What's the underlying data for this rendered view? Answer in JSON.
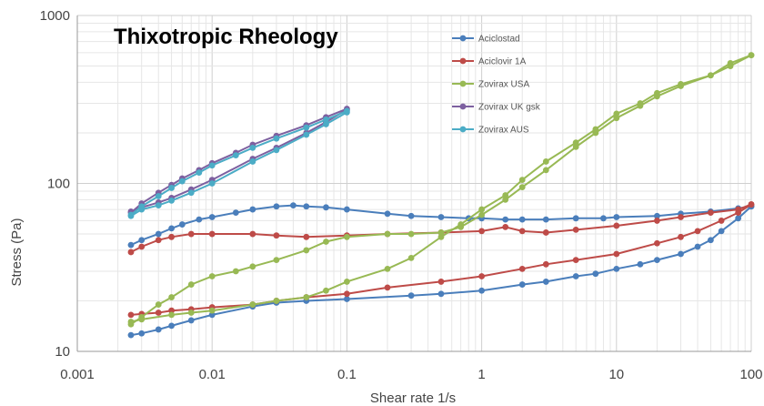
{
  "chart_data": {
    "type": "line",
    "title": "Thixotropic Rheology",
    "xlabel": "Shear rate 1/s",
    "ylabel": "Stress (Pa)",
    "xscale": "log",
    "yscale": "log",
    "xlim": [
      0.001,
      100
    ],
    "ylim": [
      10,
      1000
    ],
    "x_ticks": [
      {
        "value": 0.001,
        "label": "0.001"
      },
      {
        "value": 0.01,
        "label": "0.01"
      },
      {
        "value": 0.1,
        "label": "0.1"
      },
      {
        "value": 1,
        "label": "1"
      },
      {
        "value": 10,
        "label": "10"
      },
      {
        "value": 100,
        "label": "100"
      }
    ],
    "y_ticks": [
      {
        "value": 10,
        "label": "10"
      },
      {
        "value": 100,
        "label": "100"
      },
      {
        "value": 1000,
        "label": "1000"
      }
    ],
    "grid": true,
    "legend_position": "top-right",
    "series": [
      {
        "name": "Aciclostad",
        "color": "#4a7ebb",
        "segments": [
          {
            "x": [
              0.0025,
              0.003,
              0.004,
              0.005,
              0.006,
              0.008,
              0.01,
              0.015,
              0.02,
              0.03,
              0.04,
              0.05,
              0.07,
              0.1,
              0.2,
              0.3,
              0.5,
              0.8,
              1,
              1.5,
              2,
              3,
              5,
              8,
              10,
              20,
              30,
              50,
              80,
              100
            ],
            "y": [
              43,
              46,
              50,
              54,
              57,
              61,
              63,
              67,
              70,
              73,
              74,
              73,
              72,
              70,
              66,
              64,
              63,
              62,
              62,
              61,
              61,
              61,
              62,
              62,
              63,
              64,
              66,
              68,
              71,
              73
            ]
          },
          {
            "x": [
              100,
              80,
              60,
              50,
              40,
              30,
              20,
              15,
              10,
              7,
              5,
              3,
              2,
              1,
              0.5,
              0.3,
              0.1,
              0.05,
              0.03,
              0.02,
              0.01,
              0.007,
              0.005,
              0.004,
              0.003,
              0.0025
            ],
            "y": [
              73,
              62,
              52,
              46,
              42,
              38,
              35,
              33,
              31,
              29,
              28,
              26,
              25,
              23,
              22,
              21.5,
              20.5,
              20,
              19.5,
              18.5,
              16.5,
              15.3,
              14.2,
              13.5,
              12.8,
              12.5
            ]
          }
        ]
      },
      {
        "name": "Aciclovir 1A",
        "color": "#be4b48",
        "segments": [
          {
            "x": [
              0.0025,
              0.003,
              0.004,
              0.005,
              0.007,
              0.01,
              0.02,
              0.03,
              0.05,
              0.1,
              0.2,
              0.5,
              1,
              1.5,
              2,
              3,
              5,
              10,
              20,
              30,
              50,
              80,
              100
            ],
            "y": [
              39,
              42,
              46,
              48,
              50,
              50,
              50,
              49,
              48,
              49,
              50,
              51,
              52,
              55,
              52,
              51,
              53,
              56,
              60,
              63,
              67,
              70,
              75
            ]
          },
          {
            "x": [
              100,
              80,
              60,
              40,
              30,
              20,
              10,
              5,
              3,
              2,
              1,
              0.5,
              0.2,
              0.1,
              0.05,
              0.03,
              0.02,
              0.01,
              0.007,
              0.005,
              0.004,
              0.003,
              0.0025
            ],
            "y": [
              75,
              67,
              60,
              52,
              48,
              44,
              38,
              35,
              33,
              31,
              28,
              26,
              24,
              22,
              21,
              20,
              19,
              18.3,
              17.8,
              17.5,
              17,
              16.7,
              16.5
            ]
          }
        ]
      },
      {
        "name": "Zovirax USA",
        "color": "#98b954",
        "segments": [
          {
            "x": [
              0.0025,
              0.003,
              0.004,
              0.005,
              0.007,
              0.01,
              0.015,
              0.02,
              0.03,
              0.05,
              0.07,
              0.1,
              0.2,
              0.3,
              0.5,
              0.7,
              1,
              1.5,
              2,
              3,
              5,
              7,
              10,
              15,
              20,
              30,
              50,
              70,
              100
            ],
            "y": [
              14.5,
              16,
              19,
              21,
              25,
              28,
              30,
              32,
              35,
              40,
              45,
              48,
              50,
              50,
              51,
              55,
              65,
              80,
              95,
              120,
              165,
              200,
              245,
              290,
              330,
              380,
              440,
              520,
              580
            ]
          },
          {
            "x": [
              100,
              70,
              50,
              30,
              20,
              15,
              10,
              7,
              5,
              3,
              2,
              1.5,
              1,
              0.7,
              0.5,
              0.3,
              0.2,
              0.1,
              0.07,
              0.05,
              0.03,
              0.02,
              0.01,
              0.007,
              0.005,
              0.003,
              0.0025
            ],
            "y": [
              580,
              500,
              440,
              390,
              345,
              300,
              260,
              210,
              175,
              135,
              105,
              85,
              70,
              57,
              48,
              36,
              31,
              26,
              23,
              21,
              20,
              19,
              17.5,
              17,
              16.5,
              15.5,
              15
            ]
          }
        ]
      },
      {
        "name": "Zovirax UK gsk",
        "color": "#7d60a0",
        "segments": [
          {
            "x": [
              0.0025,
              0.003,
              0.004,
              0.005,
              0.006,
              0.008,
              0.01,
              0.015,
              0.02,
              0.03,
              0.05,
              0.07,
              0.1
            ],
            "y": [
              67,
              76,
              88,
              98,
              107,
              120,
              132,
              152,
              170,
              192,
              222,
              248,
              278
            ]
          },
          {
            "x": [
              0.1,
              0.07,
              0.05,
              0.03,
              0.02,
              0.01,
              0.007,
              0.005,
              0.004,
              0.003,
              0.0025
            ],
            "y": [
              275,
              232,
              200,
              163,
              140,
              105,
              92,
              82,
              77,
              72,
              68
            ]
          }
        ]
      },
      {
        "name": "Zovirax AUS",
        "color": "#4bacc6",
        "segments": [
          {
            "x": [
              0.0025,
              0.003,
              0.004,
              0.005,
              0.006,
              0.008,
              0.01,
              0.015,
              0.02,
              0.03,
              0.05,
              0.07,
              0.1
            ],
            "y": [
              65,
              73,
              84,
              94,
              103,
              116,
              128,
              147,
              163,
              185,
              215,
              240,
              270
            ]
          },
          {
            "x": [
              0.1,
              0.07,
              0.05,
              0.03,
              0.02,
              0.01,
              0.007,
              0.005,
              0.004,
              0.003,
              0.0025
            ],
            "y": [
              265,
              225,
              195,
              158,
              135,
              100,
              88,
              79,
              74,
              70,
              64
            ]
          }
        ]
      }
    ]
  }
}
